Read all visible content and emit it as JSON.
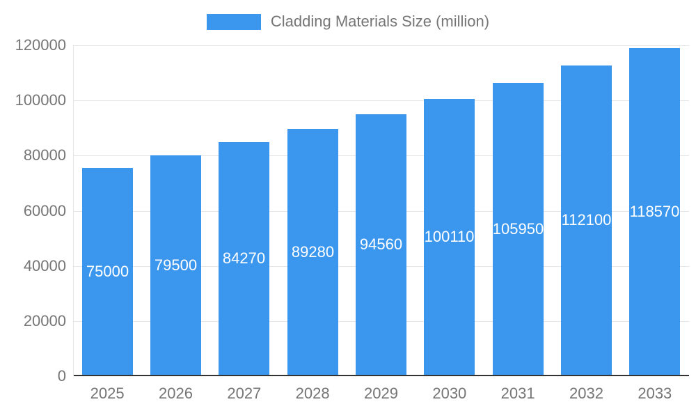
{
  "legend": {
    "label": "Cladding Materials Size (million)"
  },
  "colors": {
    "bar": "#3b97ed",
    "grid": "#e6e6e6",
    "baseline": "#333333",
    "axis_text": "#757575",
    "value_text": "#ffffff"
  },
  "chart_data": {
    "type": "bar",
    "title": "",
    "xlabel": "",
    "ylabel": "",
    "categories": [
      "2025",
      "2026",
      "2027",
      "2028",
      "2029",
      "2030",
      "2031",
      "2032",
      "2033"
    ],
    "series": [
      {
        "name": "Cladding Materials Size (million)",
        "values": [
          75000,
          79500,
          84270,
          89280,
          94560,
          100110,
          105950,
          112100,
          118570
        ]
      }
    ],
    "value_labels": [
      "75000",
      "79500",
      "84270",
      "89280",
      "94560",
      "100110",
      "105950",
      "112100",
      "118570"
    ],
    "ylim": [
      0,
      120000
    ],
    "ytick_step": 20000,
    "ytick_labels": [
      "0",
      "20000",
      "40000",
      "60000",
      "80000",
      "100000",
      "120000"
    ],
    "grid": "horizontal",
    "legend_position": "top-center"
  }
}
